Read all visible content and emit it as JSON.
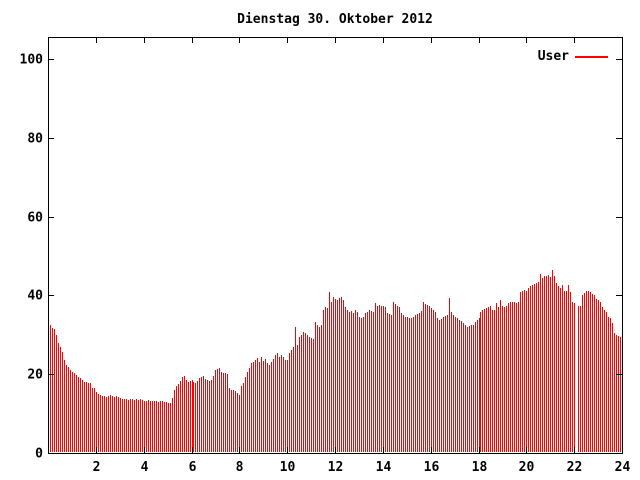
{
  "window": {
    "background": "#ffffff",
    "text_color": "#000000"
  },
  "chart_data": {
    "type": "bar",
    "title": "Dienstag 30. Oktober 2012",
    "xlabel": "",
    "ylabel": "",
    "xlim": [
      0,
      24
    ],
    "ylim": [
      0,
      105
    ],
    "x_ticks": [
      2,
      4,
      6,
      8,
      10,
      12,
      14,
      16,
      18,
      20,
      22,
      24
    ],
    "y_ticks": [
      0,
      20,
      40,
      60,
      80,
      100
    ],
    "grid": false,
    "legend_position": "top-right",
    "axis_color": "#000000",
    "sample_interval_minutes": 5,
    "start_hour": 0,
    "series": [
      {
        "name": "User",
        "color": "#ff0000",
        "values": [
          33,
          32.5,
          31.8,
          31.5,
          30,
          28,
          27,
          25.7,
          23.6,
          22.3,
          21.9,
          21.1,
          20.6,
          20.3,
          19.8,
          19.3,
          19,
          18.5,
          18,
          18,
          17.8,
          17.8,
          16.5,
          16.5,
          15.5,
          15,
          14.7,
          14.5,
          14.5,
          14.3,
          14.5,
          14.7,
          14.4,
          14.3,
          14.5,
          14.2,
          14,
          13.8,
          13.6,
          13.6,
          13.5,
          13.7,
          13.6,
          13.5,
          13.6,
          13.4,
          13.6,
          13.5,
          13.3,
          13.2,
          13.4,
          13.2,
          13.1,
          13.3,
          13.2,
          13,
          13.2,
          13.1,
          13,
          12.9,
          12.8,
          12.8,
          14,
          16,
          17,
          17.5,
          18.3,
          19.3,
          19.5,
          18.5,
          18,
          18.3,
          18.5,
          18,
          17.7,
          18.3,
          19,
          19.3,
          19.5,
          18.8,
          18.5,
          18.2,
          18.5,
          19.5,
          21.1,
          21.3,
          21.5,
          20.5,
          20.3,
          20.3,
          20,
          16.4,
          16,
          15.9,
          15.7,
          15.2,
          14.7,
          17,
          17.8,
          19.3,
          20.6,
          21.6,
          22.8,
          23.1,
          23.5,
          24.1,
          23.2,
          24.4,
          23.3,
          23.9,
          22.8,
          22.3,
          23.1,
          23.9,
          24.9,
          25.4,
          24.3,
          24.9,
          24.3,
          23.6,
          23.6,
          25.5,
          26.1,
          27,
          32,
          27.4,
          29.5,
          30,
          30.8,
          30.5,
          30,
          29.5,
          29.3,
          29,
          33.2,
          32.5,
          32,
          32.5,
          36.3,
          37.1,
          36.8,
          40.9,
          38.3,
          39.6,
          39,
          38.8,
          39.3,
          39.6,
          38.8,
          37.1,
          36.3,
          35.8,
          36,
          35.5,
          36.3,
          35.8,
          34.5,
          34.2,
          34.4,
          35.5,
          35.8,
          36.3,
          36,
          35.8,
          38,
          37.3,
          37.6,
          37.2,
          37.4,
          37.1,
          35.5,
          35.2,
          34.9,
          38.2,
          37.8,
          37.4,
          37.1,
          35.5,
          35,
          34.5,
          34.4,
          34.2,
          34.3,
          34.5,
          34.9,
          35.3,
          35.5,
          36,
          38.4,
          37.8,
          37.6,
          37.4,
          36.8,
          36.3,
          35.8,
          34.2,
          33.8,
          34,
          34.5,
          34.7,
          34.9,
          39.3,
          35.8,
          34.9,
          34.5,
          34.2,
          33.8,
          33.4,
          33,
          32.4,
          32,
          32.2,
          32.4,
          32.4,
          33.2,
          33.7,
          34.2,
          35.8,
          36.3,
          36.5,
          36.8,
          37.1,
          37.4,
          36.3,
          36.3,
          38,
          37.1,
          38.8,
          37.4,
          37.1,
          37.4,
          38,
          38.2,
          38.4,
          38.2,
          38,
          38.4,
          40.9,
          41.2,
          41.4,
          41.2,
          41.9,
          42.4,
          42.6,
          42.9,
          43.1,
          43.4,
          45.5,
          44.3,
          44.8,
          45,
          45.2,
          44.6,
          46.5,
          45,
          43.1,
          42.4,
          42,
          42.6,
          41.2,
          41,
          42.6,
          40.9,
          38.4,
          38,
          0,
          37.3,
          37.3,
          40.2,
          40.6,
          41,
          41.2,
          40.9,
          40.4,
          40.2,
          39.2,
          38.8,
          38.4,
          37.1,
          36.3,
          35.8,
          34.5,
          34.2,
          33,
          30.4,
          30,
          29.8,
          29.5
        ]
      }
    ]
  }
}
